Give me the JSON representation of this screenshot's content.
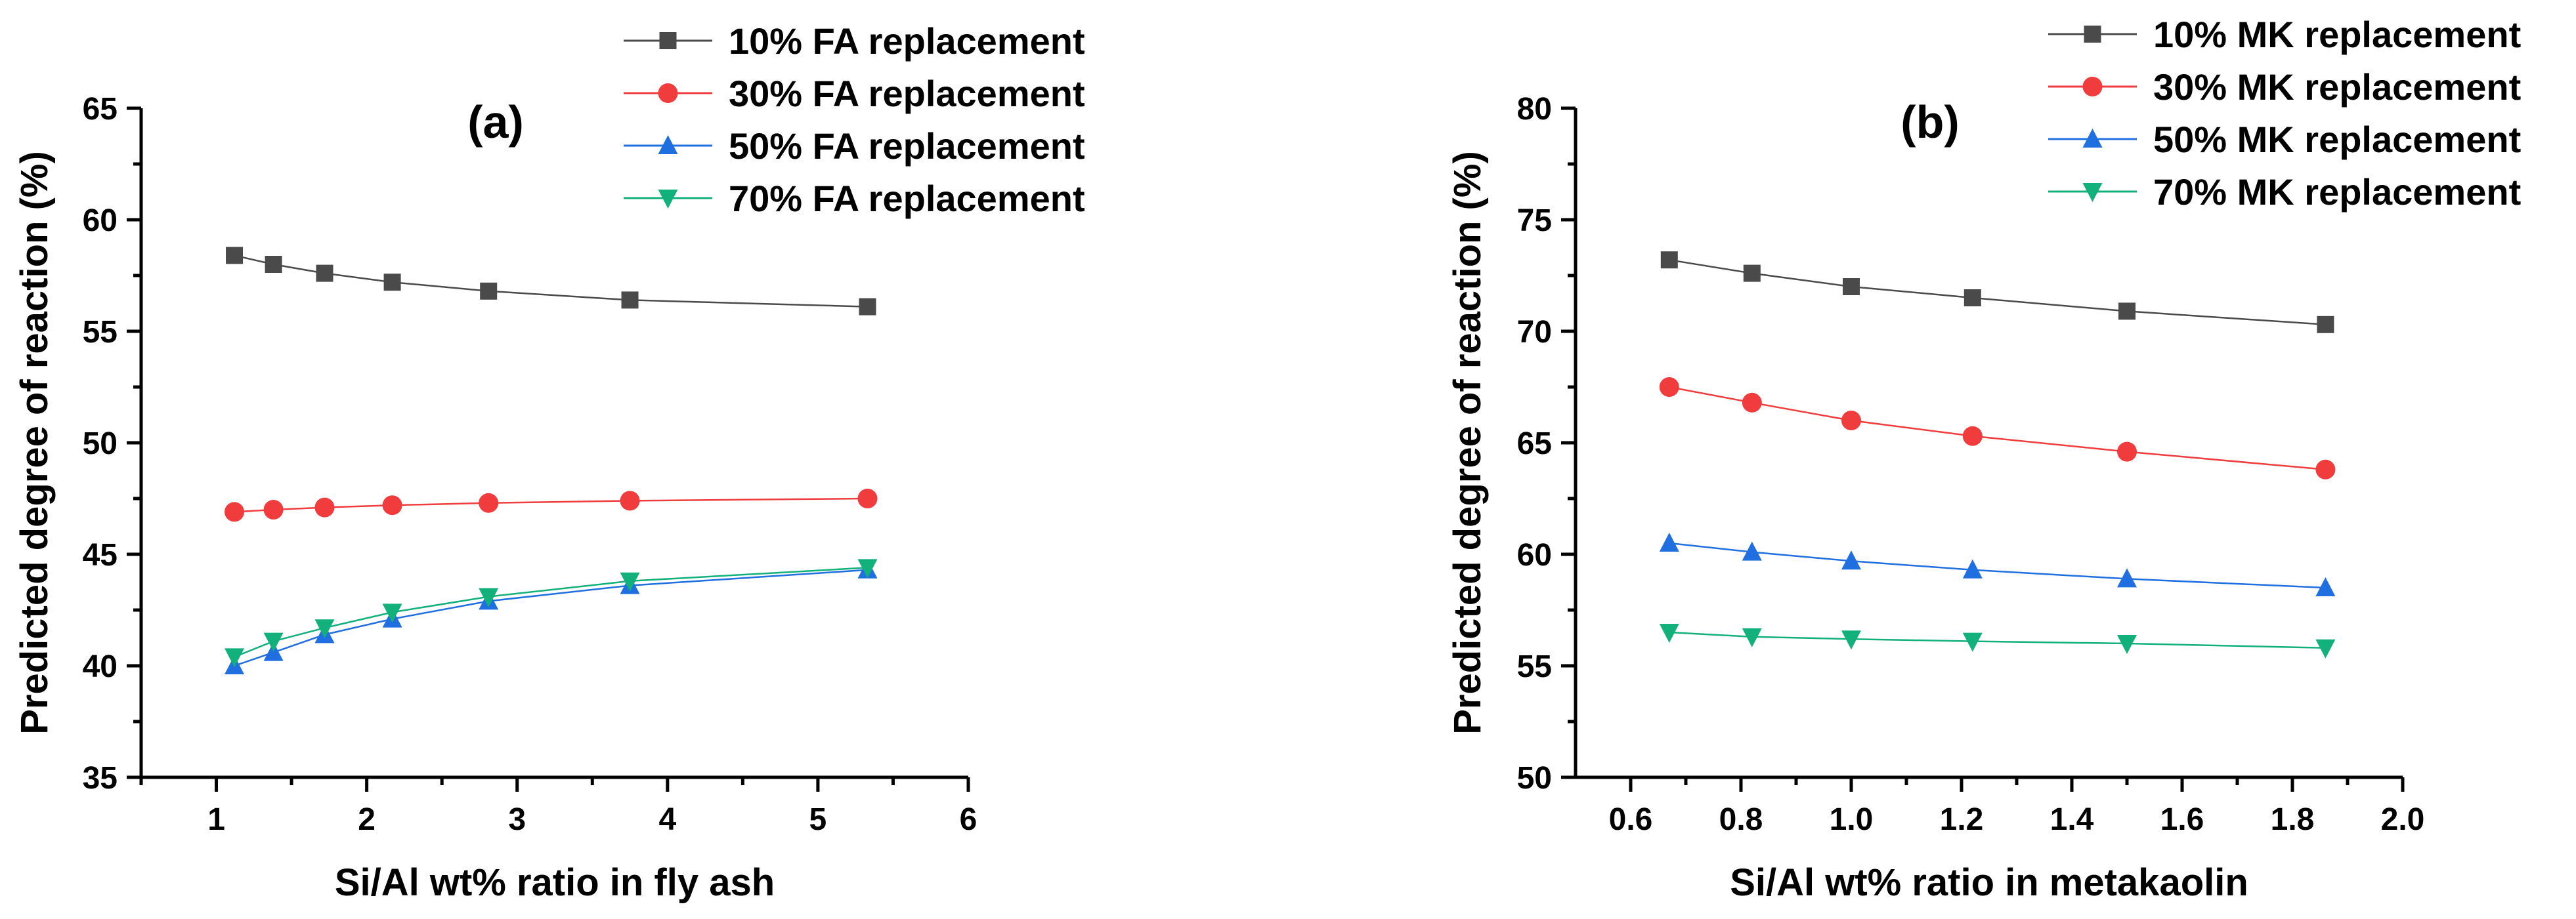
{
  "chart_data": [
    {
      "type": "line",
      "panel_label": "(a)",
      "xlabel": "Si/Al wt% ratio in fly ash",
      "ylabel": "Predicted degree of reaction (%)",
      "xlim": [
        0.5,
        6
      ],
      "ylim": [
        35,
        65
      ],
      "xticks": [
        1,
        2,
        3,
        4,
        5,
        6
      ],
      "yticks": [
        35,
        40,
        45,
        50,
        55,
        60,
        65
      ],
      "xtick_labels": [
        "1",
        "2",
        "3",
        "4",
        "5",
        "6"
      ],
      "ytick_labels": [
        "35",
        "40",
        "45",
        "50",
        "55",
        "60",
        "65"
      ],
      "legend_position": "top",
      "series": [
        {
          "name": "10% FA replacement",
          "marker": "square",
          "color": "#4a4a4a",
          "x": [
            1.12,
            1.38,
            1.72,
            2.17,
            2.81,
            3.75,
            5.33
          ],
          "y": [
            58.4,
            58.0,
            57.6,
            57.2,
            56.8,
            56.4,
            56.1
          ]
        },
        {
          "name": "30% FA replacement",
          "marker": "circle",
          "color": "#f03c3c",
          "x": [
            1.12,
            1.38,
            1.72,
            2.17,
            2.81,
            3.75,
            5.33
          ],
          "y": [
            46.9,
            47.0,
            47.1,
            47.2,
            47.3,
            47.4,
            47.5
          ]
        },
        {
          "name": "50% FA replacement",
          "marker": "triangle-up",
          "color": "#1f6fe0",
          "x": [
            1.12,
            1.38,
            1.72,
            2.17,
            2.81,
            3.75,
            5.33
          ],
          "y": [
            40.0,
            40.6,
            41.4,
            42.1,
            42.9,
            43.6,
            44.3
          ]
        },
        {
          "name": "70% FA replacement",
          "marker": "triangle-down",
          "color": "#12b07a",
          "x": [
            1.12,
            1.38,
            1.72,
            2.17,
            2.81,
            3.75,
            5.33
          ],
          "y": [
            40.4,
            41.1,
            41.7,
            42.4,
            43.1,
            43.8,
            44.4
          ]
        }
      ]
    },
    {
      "type": "line",
      "panel_label": "(b)",
      "xlabel": "Si/Al wt% ratio in metakaolin",
      "ylabel": "Predicted degree of reaction (%)",
      "xlim": [
        0.5,
        2.0
      ],
      "ylim": [
        50,
        80
      ],
      "xticks": [
        0.6,
        0.8,
        1.0,
        1.2,
        1.4,
        1.6,
        1.8,
        2.0
      ],
      "yticks": [
        50,
        55,
        60,
        65,
        70,
        75,
        80
      ],
      "xtick_labels": [
        "0.6",
        "0.8",
        "1.0",
        "1.2",
        "1.4",
        "1.6",
        "1.8",
        "2.0"
      ],
      "ytick_labels": [
        "50",
        "55",
        "60",
        "65",
        "70",
        "75",
        "80"
      ],
      "legend_position": "top-right",
      "series": [
        {
          "name": "10% MK replacement",
          "marker": "square",
          "color": "#4a4a4a",
          "x": [
            0.67,
            0.82,
            1.0,
            1.22,
            1.5,
            1.86
          ],
          "y": [
            73.2,
            72.6,
            72.0,
            71.5,
            70.9,
            70.3
          ]
        },
        {
          "name": "30% MK replacement",
          "marker": "circle",
          "color": "#f03c3c",
          "x": [
            0.67,
            0.82,
            1.0,
            1.22,
            1.5,
            1.86
          ],
          "y": [
            67.5,
            66.8,
            66.0,
            65.3,
            64.6,
            63.8
          ]
        },
        {
          "name": "50% MK replacement",
          "marker": "triangle-up",
          "color": "#1f6fe0",
          "x": [
            0.67,
            0.82,
            1.0,
            1.22,
            1.5,
            1.86
          ],
          "y": [
            60.5,
            60.1,
            59.7,
            59.3,
            58.9,
            58.5
          ]
        },
        {
          "name": "70% MK replacement",
          "marker": "triangle-down",
          "color": "#12b07a",
          "x": [
            0.67,
            0.82,
            1.0,
            1.22,
            1.5,
            1.86
          ],
          "y": [
            56.5,
            56.3,
            56.2,
            56.1,
            56.0,
            55.8
          ]
        }
      ]
    }
  ]
}
